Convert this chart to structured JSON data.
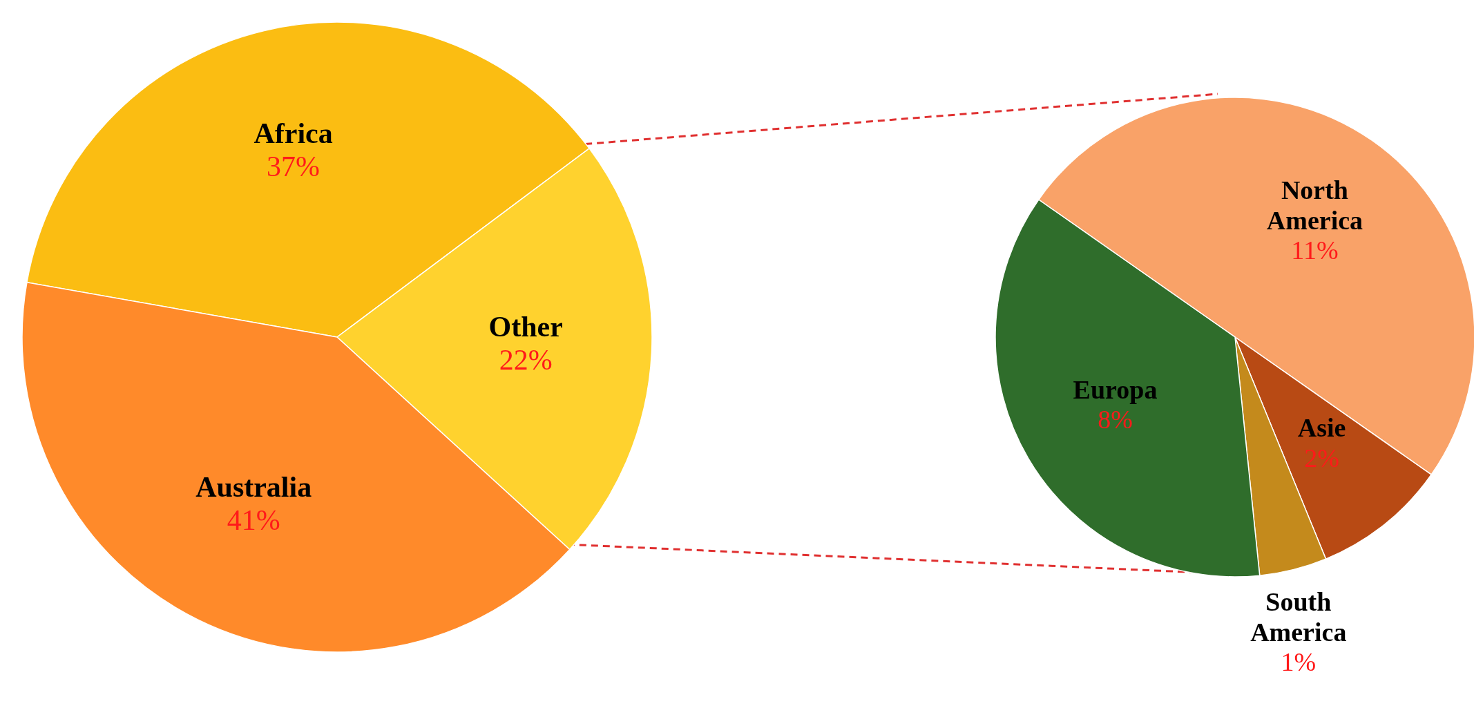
{
  "chart_data": [
    {
      "type": "pie",
      "categories": [
        "Africa",
        "Other",
        "Australia"
      ],
      "values": [
        37,
        22,
        41
      ],
      "colors": [
        "#fbbd12",
        "#ffd22e",
        "#ff8a2a"
      ],
      "value_labels": [
        "37%",
        "22%",
        "41%"
      ]
    },
    {
      "type": "pie",
      "categories": [
        "North America",
        "Asie",
        "South America",
        "Europa"
      ],
      "values": [
        11,
        2,
        1,
        8
      ],
      "colors": [
        "#f9a268",
        "#b84a14",
        "#c48a1c",
        "#2f6d2b"
      ],
      "value_labels": [
        "11%",
        "2%",
        "1%",
        "8%"
      ]
    }
  ]
}
